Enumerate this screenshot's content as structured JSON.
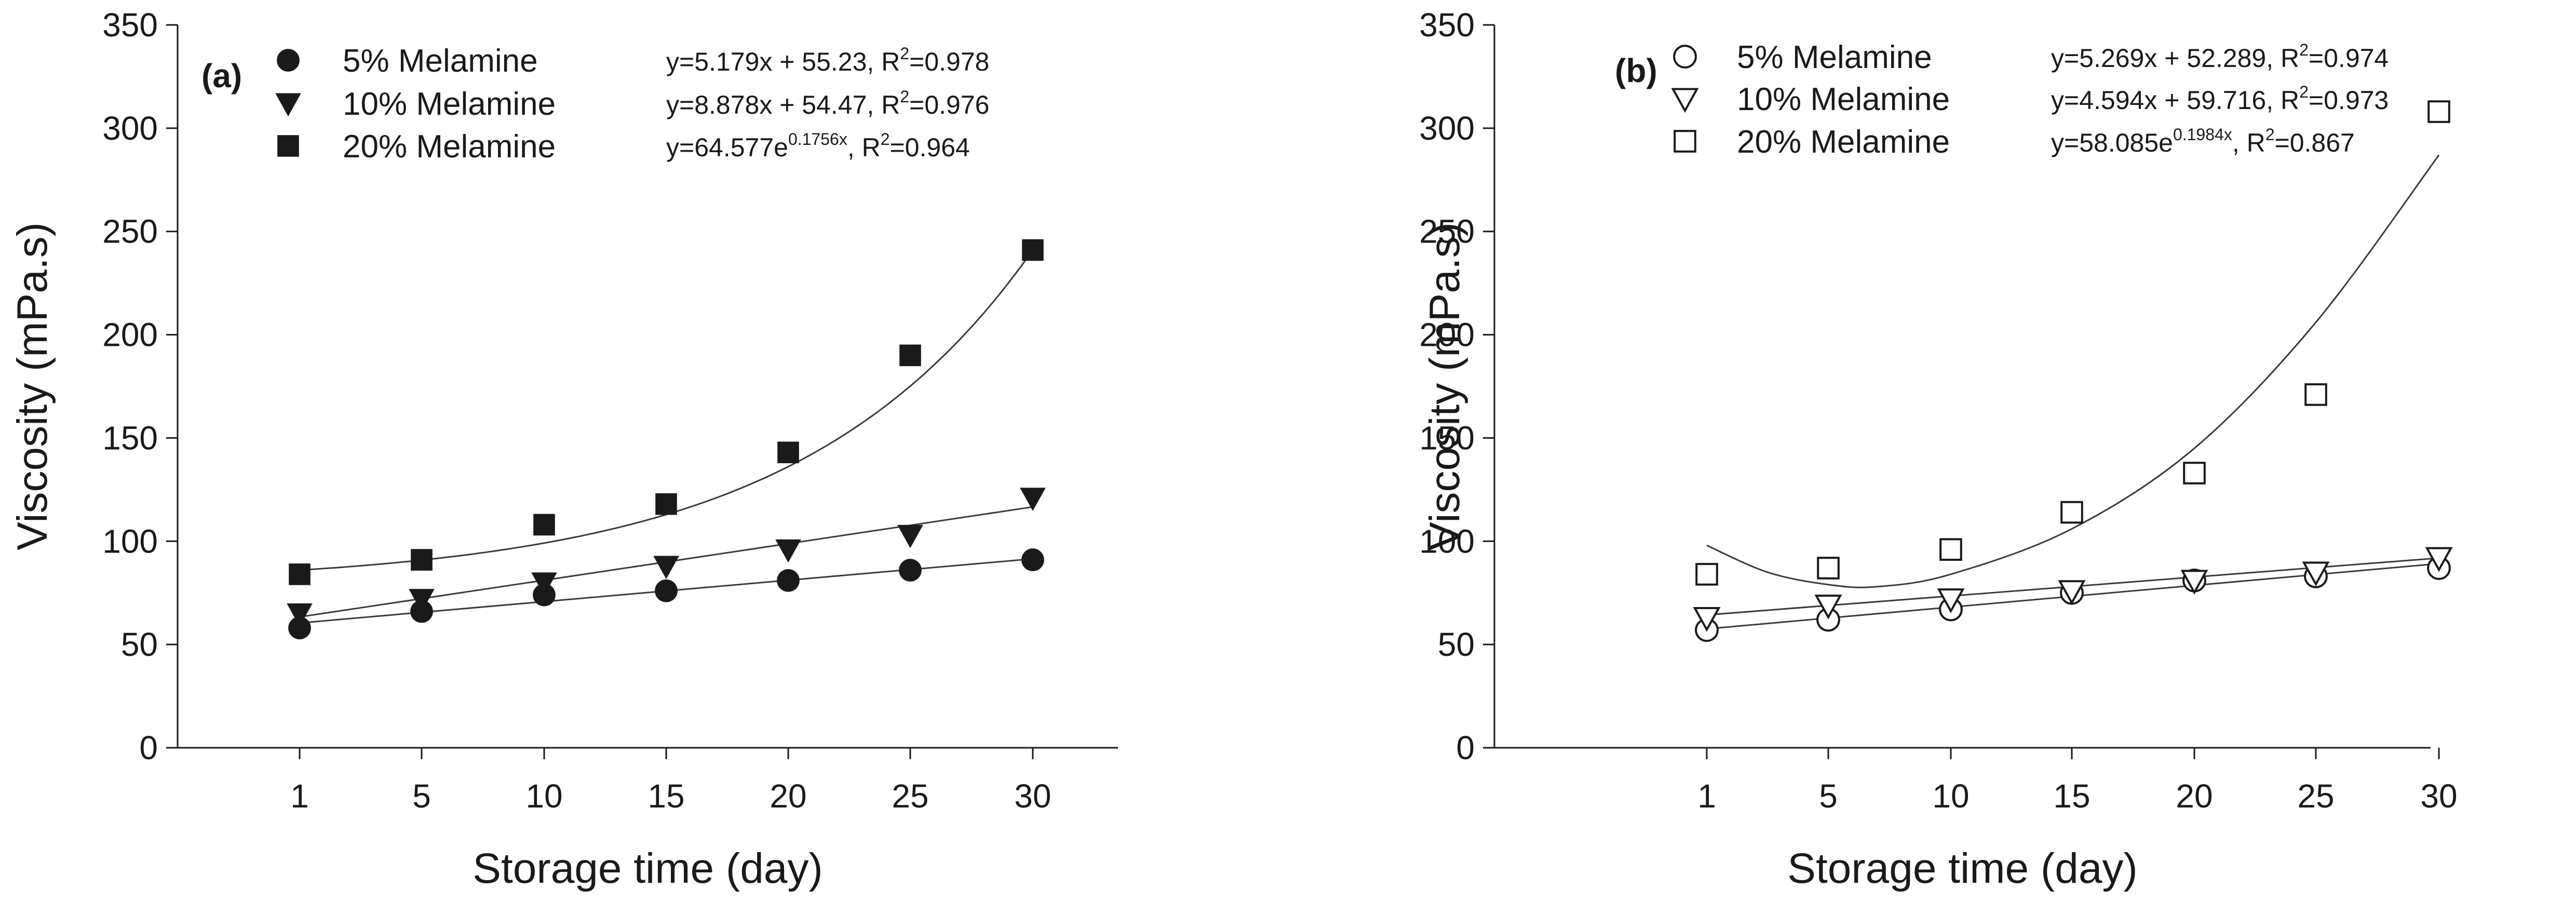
{
  "chart_data": [
    {
      "type": "scatter",
      "panel_label": "(a)",
      "xlabel": "Storage time (day)",
      "ylabel": "Viscosity (mPa.s)",
      "x_ticks": [
        "1",
        "5",
        "10",
        "15",
        "20",
        "25",
        "30"
      ],
      "x": [
        1,
        5,
        10,
        15,
        20,
        25,
        30
      ],
      "ylim": [
        0,
        350
      ],
      "y_ticks": [
        "0",
        "50",
        "100",
        "150",
        "200",
        "250",
        "300",
        "350"
      ],
      "grid": false,
      "legend_position": "top-left",
      "series": [
        {
          "name": "5% Melamine",
          "marker": "circle",
          "filled": true,
          "values": [
            58,
            66,
            74,
            76,
            81,
            86,
            91
          ],
          "equation": {
            "base": "y=5.179x + 55.23, R",
            "sup": "2",
            "tail": "=0.978"
          },
          "fit": {
            "kind": "linear",
            "a": 5.179,
            "b": 55.23
          }
        },
        {
          "name": "10% Melamine",
          "marker": "triangle-down",
          "filled": true,
          "values": [
            65,
            72,
            80,
            88,
            96,
            103,
            121
          ],
          "equation": {
            "base": "y=8.878x + 54.47, R",
            "sup": "2",
            "tail": "=0.976"
          },
          "fit": {
            "kind": "linear",
            "a": 8.878,
            "b": 54.47
          }
        },
        {
          "name": "20% Melamine",
          "marker": "square",
          "filled": true,
          "values": [
            84,
            91,
            108,
            118,
            143,
            190,
            241
          ],
          "equation": {
            "base": "y=64.577e",
            "sup": "0.1756x",
            "tail": ", R",
            "sup2": "2",
            "tail2": "=0.964"
          },
          "fit": {
            "kind": "exponential",
            "a": 64.577,
            "b": 0.1756
          }
        }
      ]
    },
    {
      "type": "scatter",
      "panel_label": "(b)",
      "xlabel": "Storage time (day)",
      "ylabel": "Viscosity (mPa.s)",
      "x_ticks": [
        "1",
        "5",
        "10",
        "15",
        "20",
        "25",
        "30"
      ],
      "x": [
        1,
        5,
        10,
        15,
        20,
        25,
        30
      ],
      "ylim": [
        0,
        350
      ],
      "y_ticks": [
        "0",
        "50",
        "100",
        "150",
        "200",
        "250",
        "300",
        "350"
      ],
      "grid": false,
      "legend_position": "top-left",
      "series": [
        {
          "name": "5% Melamine",
          "marker": "circle",
          "filled": false,
          "values": [
            57,
            62,
            67,
            75,
            81,
            83,
            87
          ],
          "equation": {
            "base": "y=5.269x + 52.289, R",
            "sup": "2",
            "tail": "=0.974"
          },
          "fit": {
            "kind": "linear",
            "a": 5.269,
            "b": 52.289
          }
        },
        {
          "name": "10% Melamine",
          "marker": "triangle-down",
          "filled": false,
          "values": [
            63,
            69,
            72,
            76,
            81,
            85,
            92
          ],
          "equation": {
            "base": "y=4.594x + 59.716, R",
            "sup": "2",
            "tail": "=0.973"
          },
          "fit": {
            "kind": "linear",
            "a": 4.594,
            "b": 59.716
          }
        },
        {
          "name": "20% Melamine",
          "marker": "square",
          "filled": false,
          "values": [
            84,
            87,
            96,
            114,
            133,
            171,
            308
          ],
          "equation": {
            "base": "y=58.085e",
            "sup": "0.1984x",
            "tail": ", R",
            "sup2": "2",
            "tail2": "=0.867"
          },
          "fit": {
            "kind": "smooth-curve",
            "points": [
              [
                1,
                98
              ],
              [
                3,
                85
              ],
              [
                5,
                79
              ],
              [
                7,
                78
              ],
              [
                10,
                84
              ],
              [
                15,
                106
              ],
              [
                20,
                145
              ],
              [
                25,
                206
              ],
              [
                30,
                287
              ]
            ]
          }
        }
      ]
    }
  ]
}
